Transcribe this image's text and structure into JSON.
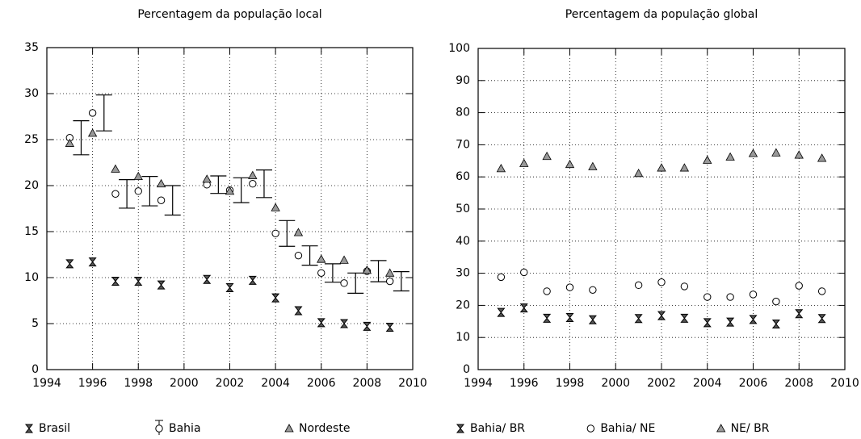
{
  "chart_data": [
    {
      "type": "scatter",
      "subtitle": "Percentagem da população local",
      "x": [
        1995,
        1996,
        1997,
        1998,
        1999,
        2001,
        2002,
        2003,
        2004,
        2005,
        2006,
        2007,
        2008,
        2009
      ],
      "xlim": [
        1994,
        2010
      ],
      "xticks": [
        1994,
        1996,
        1998,
        2000,
        2002,
        2004,
        2006,
        2008,
        2010
      ],
      "ylim": [
        0,
        35
      ],
      "yticks": [
        0,
        5,
        10,
        15,
        20,
        25,
        30,
        35
      ],
      "grid": true,
      "series": [
        {
          "name": "Brasil",
          "marker": "x",
          "color": "#000000",
          "values": [
            11.5,
            11.7,
            9.6,
            9.6,
            9.2,
            9.8,
            8.9,
            9.7,
            7.8,
            6.4,
            5.1,
            5.0,
            4.7,
            4.6
          ]
        },
        {
          "name": "Bahia",
          "marker": "circle",
          "color": "#000000",
          "values": [
            25.2,
            27.9,
            19.1,
            19.4,
            18.4,
            20.1,
            19.5,
            20.2,
            14.8,
            12.4,
            10.5,
            9.4,
            10.7,
            9.6
          ],
          "errors": [
            1.85,
            1.95,
            1.55,
            1.6,
            1.6,
            0.95,
            1.35,
            1.5,
            1.4,
            1.05,
            1.0,
            1.1,
            1.15,
            1.05
          ]
        },
        {
          "name": "Nordeste",
          "marker": "triangle",
          "color": "#999999",
          "values": [
            24.6,
            25.7,
            21.8,
            21.0,
            20.2,
            20.7,
            19.4,
            21.1,
            17.6,
            14.9,
            12.0,
            11.9,
            10.8,
            10.5
          ]
        }
      ]
    },
    {
      "type": "scatter",
      "subtitle": "Percentagem da população global",
      "x": [
        1995,
        1996,
        1997,
        1998,
        1999,
        2001,
        2002,
        2003,
        2004,
        2005,
        2006,
        2007,
        2008,
        2009
      ],
      "xlim": [
        1994,
        2010
      ],
      "xticks": [
        1994,
        1996,
        1998,
        2000,
        2002,
        2004,
        2006,
        2008,
        2010
      ],
      "ylim": [
        0,
        100
      ],
      "yticks": [
        0,
        10,
        20,
        30,
        40,
        50,
        60,
        70,
        80,
        90,
        100
      ],
      "grid": true,
      "series": [
        {
          "name": "Bahia/ BR",
          "marker": "x",
          "color": "#000000",
          "values": [
            17.8,
            19.2,
            16.0,
            16.2,
            15.5,
            15.9,
            16.8,
            16.0,
            14.6,
            14.8,
            15.6,
            14.2,
            17.4,
            15.9
          ]
        },
        {
          "name": "Bahia/ NE",
          "marker": "circle",
          "color": "#000000",
          "values": [
            28.8,
            30.3,
            24.4,
            25.6,
            24.8,
            26.3,
            27.2,
            25.9,
            22.6,
            22.6,
            23.4,
            21.2,
            26.1,
            24.4
          ]
        },
        {
          "name": "NE/ BR",
          "marker": "triangle",
          "color": "#999999",
          "values": [
            62.6,
            64.2,
            66.4,
            63.9,
            63.2,
            61.1,
            62.8,
            62.8,
            65.2,
            66.2,
            67.3,
            67.5,
            66.8,
            65.8
          ]
        }
      ]
    }
  ]
}
